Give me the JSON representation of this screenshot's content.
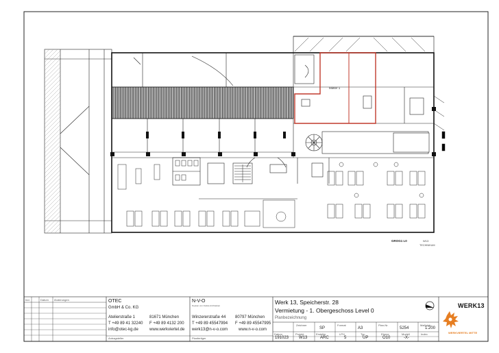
{
  "title_block": {
    "revision_headers": [
      "Ind.",
      "Datum",
      "Änderungen"
    ],
    "architect": {
      "name": "OTEC",
      "legal": "GmbH & Co. KG",
      "street": "Atelierstraße 1",
      "city": "81671 München",
      "phone": "T +49 89 41 32240",
      "fax": "F +49 89 4132 200",
      "email": "info@otec-kg.de",
      "web": "www.werkviertel.de",
      "role": "Antragsteller"
    },
    "planner": {
      "name": "N-V-O",
      "subtitle": "Nuyken von Oefele Architekten",
      "street": "Winzererstraße 44",
      "city": "80797 München",
      "phone": "T +49 89 45547994",
      "fax": "F +49 89 45547995",
      "email": "werk13@n-v-o.com",
      "web": "www.n-v-o.com",
      "role": "Planfertiger"
    },
    "project": {
      "title": "Werk 13, Speicherstr. 28",
      "subtitle": "Vermietung - 1. Obergeschoss Level 0",
      "doc_type": "Planbezeichnung"
    },
    "grid_labels_top": [
      "Zeichner",
      "Format",
      "Plan-Nr.",
      "Maßstab"
    ],
    "grid_values_top": [
      "SP",
      "A3",
      "5254",
      "1:200"
    ],
    "grid_labels_bottom": [
      "Datum",
      "Projekt",
      "Ersteller",
      "LPH",
      "Typ",
      "Ebene",
      "Modell",
      "Index"
    ],
    "grid_values_bottom": [
      "191023",
      "W13",
      "ARC",
      "5",
      "UP",
      "O10",
      "-X-",
      ""
    ],
    "logo_text": "WERK13",
    "logo_sub": "WERKVIERTEL MITTE"
  },
  "legend": {
    "key": "GROG1 L0",
    "code": "W13",
    "label": "TECHNIKUM"
  },
  "room_label": "Mieter 1",
  "colors": {
    "line": "#222222",
    "hatch": "#333333",
    "highlight": "#c0392b",
    "logo_orange": "#e67e22"
  }
}
